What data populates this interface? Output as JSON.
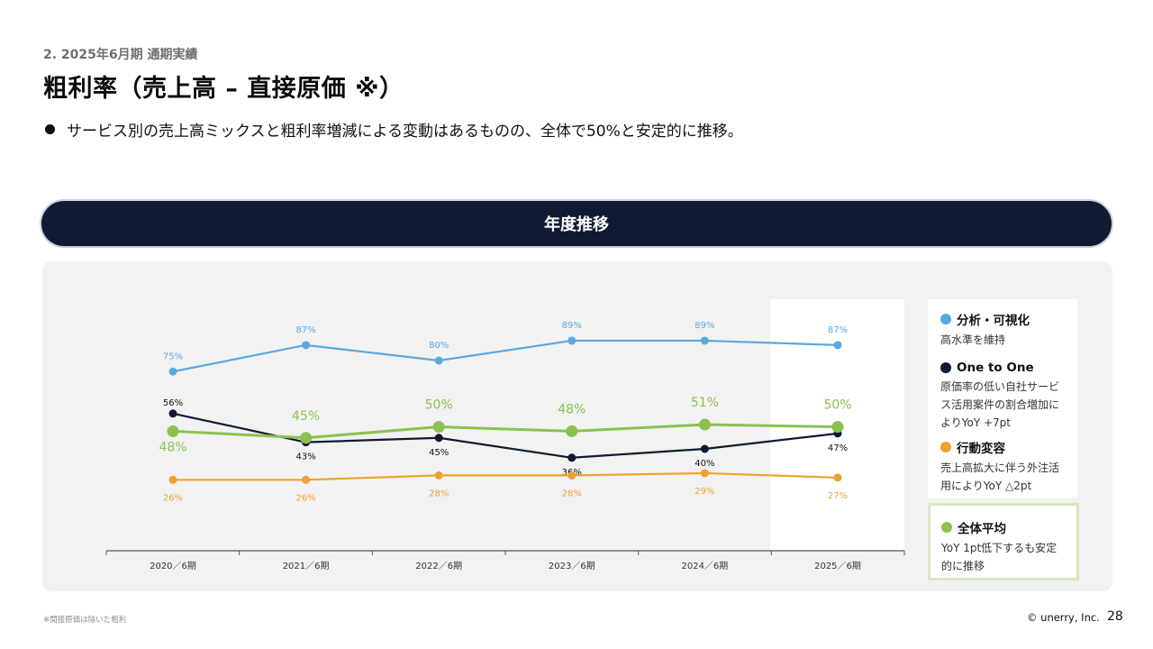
{
  "header": {
    "section_label": "2. 2025年6月期 通期実績",
    "title": "粗利率（売上高 – 直接原価 ※）",
    "bullet": "サービス別の売上高ミックスと粗利率増減による変動はあるものの、全体で50%と安定的に推移。"
  },
  "banner": {
    "title": "年度推移"
  },
  "chart_data": {
    "type": "line",
    "categories": [
      "2020／6期",
      "2021／6期",
      "2022／6期",
      "2023／6期",
      "2024／6期",
      "2025／6期"
    ],
    "ylim": [
      0,
      100
    ],
    "grid": false,
    "highlight_category": "2025／6期",
    "series": [
      {
        "name": "分析・可視化",
        "color": "#5aa8e0",
        "values": [
          75,
          87,
          80,
          89,
          89,
          87
        ],
        "labels": [
          "75%",
          "87%",
          "80%",
          "89%",
          "89%",
          "87%"
        ]
      },
      {
        "name": "One to One",
        "color": "#101a32",
        "values": [
          56,
          43,
          45,
          36,
          40,
          47
        ],
        "labels": [
          "56%",
          "43%",
          "45%",
          "36%",
          "40%",
          "47%"
        ]
      },
      {
        "name": "行動変容",
        "color": "#eba232",
        "values": [
          26,
          26,
          28,
          28,
          29,
          27
        ],
        "labels": [
          "26%",
          "26%",
          "28%",
          "28%",
          "29%",
          "27%"
        ]
      },
      {
        "name": "全体平均",
        "color": "#8bc151",
        "values": [
          48,
          45,
          50,
          48,
          51,
          50
        ],
        "labels": [
          "48%",
          "45%",
          "50%",
          "48%",
          "51%",
          "50%"
        ]
      }
    ]
  },
  "legend": {
    "items": [
      {
        "name": "分析・可視化",
        "desc": "高水準を維持",
        "color": "#5aa8e0"
      },
      {
        "name": "One to One",
        "desc": "原価率の低い自社サービス活用案件の割合増加によりYoY +7pt",
        "color": "#101a32"
      },
      {
        "name": "行動変容",
        "desc": "売上高拡大に伴う外注活用によりYoY △2pt",
        "color": "#eba232"
      }
    ],
    "average": {
      "name": "全体平均",
      "desc": "YoY 1pt低下するも安定的に推移",
      "color": "#8bc151"
    }
  },
  "footer": {
    "footnote": "※間接原価は除いた粗利",
    "copyright": "© unerry, Inc.",
    "page_number": "28"
  }
}
